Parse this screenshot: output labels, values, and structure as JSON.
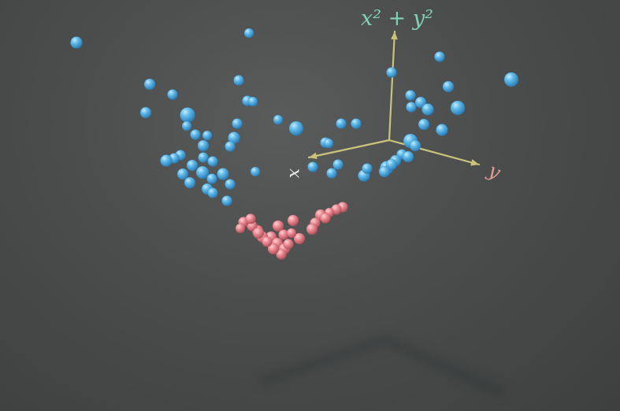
{
  "axes": {
    "z_label": "x² + y²",
    "x_label": "x",
    "y_label": "y",
    "axis_color": "#c9c47a",
    "z_label_color": "#7fd1b8",
    "x_label_color": "#e8ece8",
    "y_label_color": "#e39a96"
  },
  "points": {
    "outer_class": {
      "name": "",
      "color": "#5fb8e6",
      "highlight": "#b9e6ff",
      "shadow": "#2a7eb5",
      "count": 78
    },
    "inner_class": {
      "name": "",
      "color": "#e98890",
      "highlight": "#ffc6ca",
      "shadow": "#b4525d",
      "count": 26
    }
  }
}
